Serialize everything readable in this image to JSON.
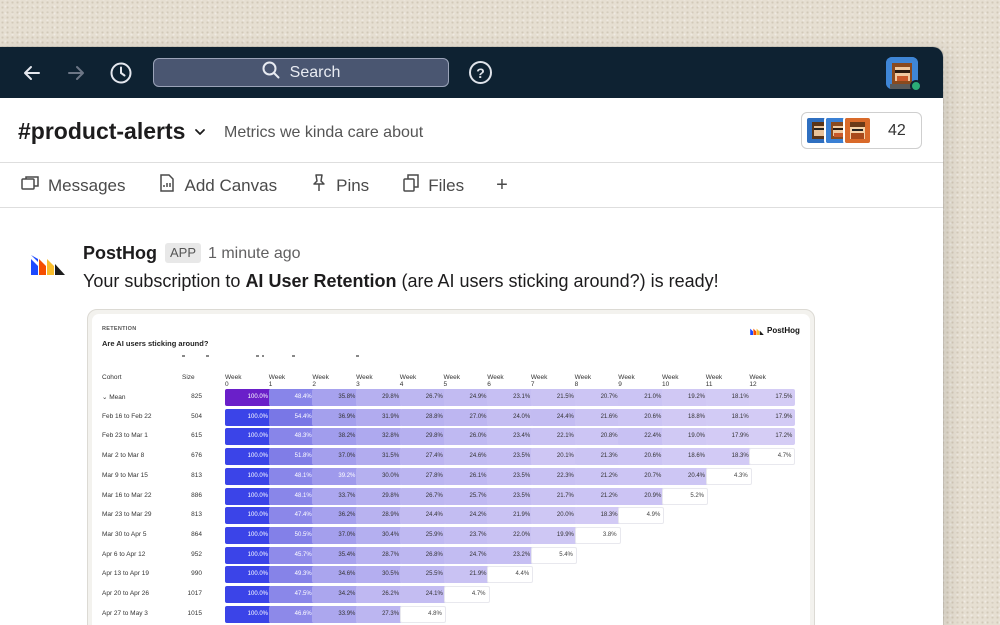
{
  "topbar": {
    "search_label": "Search",
    "help_label": "?",
    "icons": [
      "back-arrow-icon",
      "forward-arrow-icon",
      "history-clock-icon",
      "search-icon",
      "help-icon"
    ]
  },
  "channel": {
    "name": "#product-alerts",
    "topic": "Metrics we kinda care about",
    "member_count": "42"
  },
  "tabs": [
    {
      "label": "Messages",
      "icon": "messages-icon"
    },
    {
      "label": "Add Canvas",
      "icon": "canvas-icon"
    },
    {
      "label": "Pins",
      "icon": "pin-icon"
    },
    {
      "label": "Files",
      "icon": "files-icon"
    }
  ],
  "tab_add": "+",
  "message": {
    "sender": "PostHog",
    "badge": "APP",
    "timestamp": "1 minute ago",
    "text_before": "Your subscription to ",
    "text_bold": "AI User Retention",
    "text_after": " (are AI users sticking around?) is ready!"
  },
  "retention": {
    "kicker": "RETENTION",
    "title": "Are AI users sticking around?",
    "logo_text": "PostHog",
    "col_cohort": "Cohort",
    "col_size": "Size",
    "weeks": [
      "Week 0",
      "Week 1",
      "Week 2",
      "Week 3",
      "Week 4",
      "Week 5",
      "Week 6",
      "Week 7",
      "Week 8",
      "Week 9",
      "Week 10",
      "Week 11",
      "Week 12"
    ],
    "rows": [
      {
        "cohort": "⌄  Mean",
        "size": "825",
        "values": [
          "100.0%",
          "48.4%",
          "35.8%",
          "29.8%",
          "26.7%",
          "24.9%",
          "23.1%",
          "21.5%",
          "20.7%",
          "21.0%",
          "19.2%",
          "18.1%",
          "17.5%"
        ]
      },
      {
        "cohort": "Feb 16 to Feb 22",
        "size": "504",
        "values": [
          "100.0%",
          "54.4%",
          "36.9%",
          "31.9%",
          "28.8%",
          "27.0%",
          "24.0%",
          "24.4%",
          "21.6%",
          "20.6%",
          "18.8%",
          "18.1%",
          "17.9%"
        ]
      },
      {
        "cohort": "Feb 23 to Mar 1",
        "size": "615",
        "values": [
          "100.0%",
          "48.3%",
          "38.2%",
          "32.8%",
          "29.8%",
          "26.0%",
          "23.4%",
          "22.1%",
          "20.8%",
          "22.4%",
          "19.0%",
          "17.9%",
          "17.2%"
        ]
      },
      {
        "cohort": "Mar 2 to Mar 8",
        "size": "676",
        "values": [
          "100.0%",
          "51.8%",
          "37.0%",
          "31.5%",
          "27.4%",
          "24.6%",
          "23.5%",
          "20.1%",
          "21.3%",
          "20.6%",
          "18.6%",
          "18.3%",
          "4.7%"
        ]
      },
      {
        "cohort": "Mar 9 to Mar 15",
        "size": "813",
        "values": [
          "100.0%",
          "48.1%",
          "39.2%",
          "30.0%",
          "27.8%",
          "26.1%",
          "23.5%",
          "22.3%",
          "21.2%",
          "20.7%",
          "20.4%",
          "4.3%"
        ]
      },
      {
        "cohort": "Mar 16 to Mar 22",
        "size": "886",
        "values": [
          "100.0%",
          "48.1%",
          "33.7%",
          "29.8%",
          "26.7%",
          "25.7%",
          "23.5%",
          "21.7%",
          "21.2%",
          "20.9%",
          "5.2%"
        ]
      },
      {
        "cohort": "Mar 23 to Mar 29",
        "size": "813",
        "values": [
          "100.0%",
          "47.4%",
          "36.2%",
          "28.9%",
          "24.4%",
          "24.2%",
          "21.9%",
          "20.0%",
          "18.3%",
          "4.9%"
        ]
      },
      {
        "cohort": "Mar 30 to Apr 5",
        "size": "864",
        "values": [
          "100.0%",
          "50.5%",
          "37.0%",
          "30.4%",
          "25.9%",
          "23.7%",
          "22.0%",
          "19.9%",
          "3.8%"
        ]
      },
      {
        "cohort": "Apr 6 to Apr 12",
        "size": "952",
        "values": [
          "100.0%",
          "45.7%",
          "35.4%",
          "28.7%",
          "26.8%",
          "24.7%",
          "23.2%",
          "5.4%"
        ]
      },
      {
        "cohort": "Apr 13 to Apr 19",
        "size": "990",
        "values": [
          "100.0%",
          "49.3%",
          "34.6%",
          "30.5%",
          "25.5%",
          "21.9%",
          "4.4%"
        ]
      },
      {
        "cohort": "Apr 20 to Apr 26",
        "size": "1017",
        "values": [
          "100.0%",
          "47.5%",
          "34.2%",
          "26.2%",
          "24.1%",
          "4.7%"
        ]
      },
      {
        "cohort": "Apr 27 to May 3",
        "size": "1015",
        "values": [
          "100.0%",
          "46.6%",
          "33.9%",
          "27.3%",
          "4.8%"
        ]
      }
    ]
  },
  "colors": {
    "topbar": "#0e2232",
    "week0": "#3b44e8",
    "mean_week0": "#6a1fc9",
    "presence": "#2bac76"
  }
}
